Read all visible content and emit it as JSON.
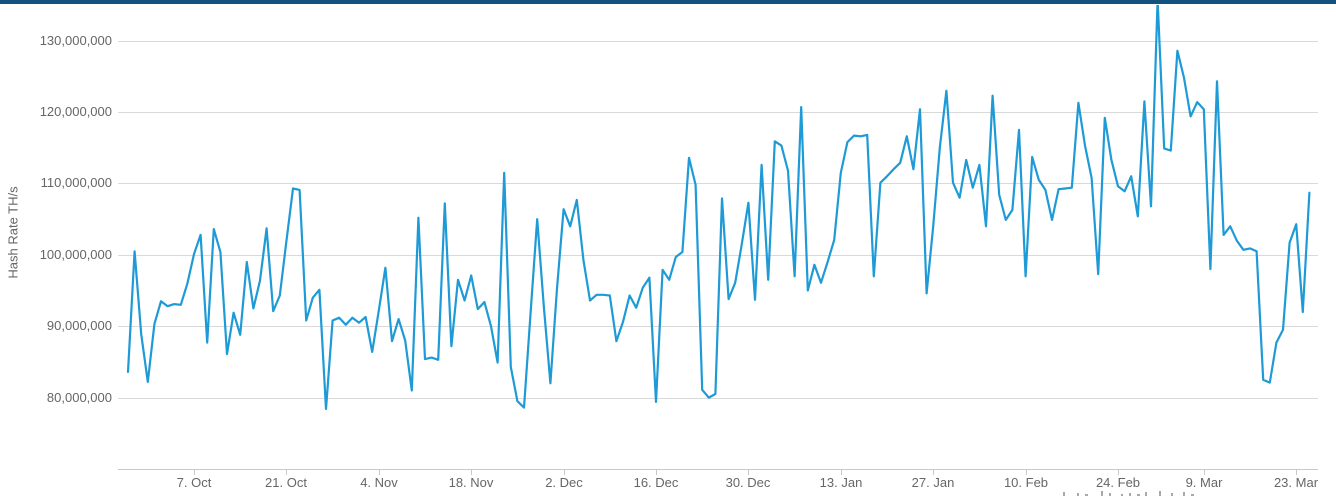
{
  "page": {
    "background": "#ffffff",
    "top_bar_color": "#11527e"
  },
  "chart_data": {
    "type": "line",
    "title": "",
    "ylabel": "Hash Rate TH/s",
    "xlabel": "",
    "legend": "none",
    "grid": "horizontal",
    "series_name": "Hash Rate",
    "series_color": "#1e9ad6",
    "grid_color": "#d9d9d9",
    "axis_line_color": "#c9c9c9",
    "tick_color": "#c9c9c9",
    "label_color": "#666666",
    "x_unit": "day",
    "x_start": "27. Sep",
    "x_end": "25. Mar",
    "value_scale": 1000000,
    "ylim_millions": [
      70,
      135
    ],
    "y_ticks": [
      {
        "value_millions": 80,
        "label": "80,000,000"
      },
      {
        "value_millions": 90,
        "label": "90,000,000"
      },
      {
        "value_millions": 100,
        "label": "100,000,000"
      },
      {
        "value_millions": 110,
        "label": "110,000,000"
      },
      {
        "value_millions": 120,
        "label": "120,000,000"
      },
      {
        "value_millions": 130,
        "label": "130,000,000"
      }
    ],
    "x_ticks": [
      {
        "day_index": 10,
        "label": "7. Oct"
      },
      {
        "day_index": 24,
        "label": "21. Oct"
      },
      {
        "day_index": 38,
        "label": "4. Nov"
      },
      {
        "day_index": 52,
        "label": "18. Nov"
      },
      {
        "day_index": 66,
        "label": "2. Dec"
      },
      {
        "day_index": 80,
        "label": "16. Dec"
      },
      {
        "day_index": 94,
        "label": "30. Dec"
      },
      {
        "day_index": 108,
        "label": "13. Jan"
      },
      {
        "day_index": 122,
        "label": "27. Jan"
      },
      {
        "day_index": 136,
        "label": "10. Feb"
      },
      {
        "day_index": 150,
        "label": "24. Feb"
      },
      {
        "day_index": 163,
        "label": "9. Mar"
      },
      {
        "day_index": 177,
        "label": "23. Mar"
      }
    ],
    "values_millions": [
      83.6,
      100.5,
      88.9,
      82.2,
      90.3,
      93.5,
      92.8,
      93.1,
      93.0,
      96.0,
      100.1,
      102.8,
      87.7,
      103.6,
      100.4,
      86.1,
      91.9,
      88.8,
      99.0,
      92.5,
      96.4,
      103.7,
      92.1,
      94.3,
      101.9,
      109.3,
      109.1,
      90.8,
      94.0,
      95.1,
      78.4,
      90.8,
      91.2,
      90.2,
      91.2,
      90.5,
      91.3,
      86.4,
      92.2,
      98.2,
      87.9,
      91.0,
      88.0,
      81.0,
      105.2,
      85.4,
      85.6,
      85.3,
      107.2,
      87.2,
      96.5,
      93.6,
      97.1,
      92.4,
      93.4,
      90.0,
      84.9,
      111.5,
      84.3,
      79.5,
      78.6,
      91.9,
      105.0,
      92.8,
      82.0,
      95.3,
      106.4,
      104.0,
      107.7,
      99.3,
      93.6,
      94.4,
      94.4,
      94.3,
      87.9,
      90.6,
      94.3,
      92.6,
      95.4,
      96.8,
      79.4,
      97.9,
      96.5,
      99.7,
      100.4,
      113.6,
      109.8,
      81.1,
      80.0,
      80.5,
      107.9,
      93.8,
      96.1,
      101.5,
      107.3,
      93.7,
      112.6,
      96.5,
      115.9,
      115.3,
      111.8,
      97.0,
      120.7,
      95.0,
      98.6,
      96.1,
      99.0,
      102.1,
      111.5,
      115.8,
      116.7,
      116.6,
      116.8,
      97.0,
      110.1,
      111.0,
      112.0,
      112.9,
      116.6,
      112.0,
      120.4,
      94.6,
      104.0,
      115.0,
      123.0,
      110.1,
      108.0,
      113.3,
      109.4,
      112.6,
      104.0,
      122.3,
      108.4,
      104.9,
      106.3,
      117.5,
      97.0,
      113.7,
      110.5,
      109.1,
      104.9,
      109.2,
      109.3,
      109.4,
      121.3,
      115.3,
      110.8,
      97.3,
      119.2,
      113.3,
      109.6,
      108.9,
      111.0,
      105.4,
      121.5,
      106.8,
      135.7,
      114.9,
      114.6,
      128.6,
      124.8,
      119.4,
      121.4,
      120.4,
      98.0,
      124.3,
      102.8,
      104.0,
      102.0,
      100.7,
      100.9,
      100.5,
      82.5,
      82.1,
      87.7,
      89.5,
      101.7,
      104.3,
      92.0,
      108.7
    ]
  }
}
